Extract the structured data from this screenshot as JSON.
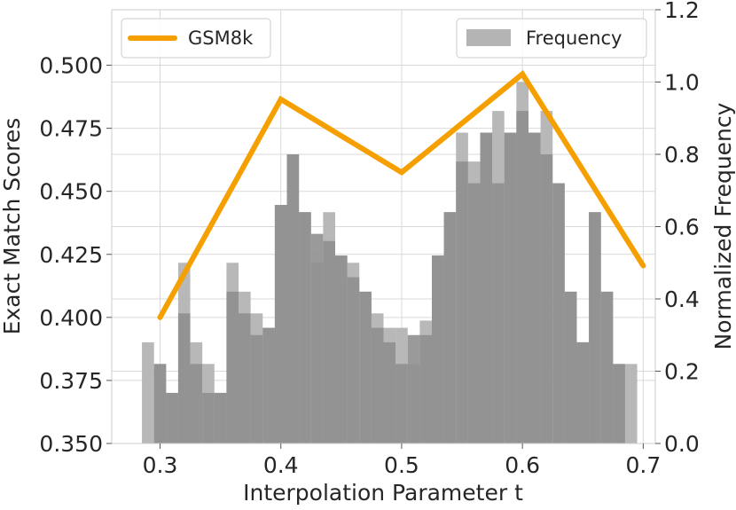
{
  "chart_data": {
    "type": "bar+line",
    "xlabel": "Interpolation Parameter t",
    "ylabel_left": "Exact Match Scores",
    "ylabel_right": "Normalized Frequency",
    "xlim": [
      0.26,
      0.71
    ],
    "ylim_left": [
      0.35,
      0.522
    ],
    "ylim_right": [
      0.0,
      1.2
    ],
    "xticks": [
      "0.3",
      "0.4",
      "0.5",
      "0.6",
      "0.7"
    ],
    "xtick_values": [
      0.3,
      0.4,
      0.5,
      0.6,
      0.7
    ],
    "yticks_left": [
      "0.350",
      "0.375",
      "0.400",
      "0.425",
      "0.450",
      "0.475",
      "0.500"
    ],
    "ytick_values_left": [
      0.35,
      0.375,
      0.4,
      0.425,
      0.45,
      0.475,
      0.5
    ],
    "yticks_right": [
      "0.0",
      "0.2",
      "0.4",
      "0.6",
      "0.8",
      "1.0",
      "1.2"
    ],
    "ytick_values_right": [
      0.0,
      0.2,
      0.4,
      0.6,
      0.8,
      1.0,
      1.2
    ],
    "grid": true,
    "line_series": {
      "name": "GSM8k",
      "color": "#f5a000",
      "x": [
        0.3,
        0.4,
        0.5,
        0.6,
        0.7
      ],
      "y": [
        0.4,
        0.4865,
        0.4575,
        0.4965,
        0.4205
      ]
    },
    "histogram_series": [
      {
        "name": "Frequency",
        "color": "#b4b4b4",
        "bin_width": 0.01,
        "x": [
          0.29,
          0.3,
          0.31,
          0.32,
          0.33,
          0.34,
          0.35,
          0.36,
          0.37,
          0.38,
          0.39,
          0.4,
          0.41,
          0.42,
          0.43,
          0.44,
          0.45,
          0.46,
          0.47,
          0.48,
          0.49,
          0.5,
          0.51,
          0.52,
          0.53,
          0.54,
          0.55,
          0.56,
          0.57,
          0.58,
          0.59,
          0.6,
          0.61,
          0.62,
          0.63,
          0.64,
          0.65,
          0.66,
          0.67,
          0.68,
          0.69
        ],
        "values": [
          0.28,
          0.22,
          0.14,
          0.5,
          0.28,
          0.22,
          0.14,
          0.5,
          0.42,
          0.36,
          0.32,
          0.66,
          0.8,
          0.64,
          0.5,
          0.64,
          0.52,
          0.5,
          0.42,
          0.36,
          0.32,
          0.32,
          0.22,
          0.34,
          0.52,
          0.64,
          0.86,
          0.78,
          0.86,
          0.92,
          0.86,
          1.0,
          0.86,
          0.92,
          0.72,
          0.42,
          0.28,
          0.64,
          0.42,
          0.22,
          0.22
        ]
      },
      {
        "name": "",
        "color": "#8f8f8f",
        "bin_width": 0.01,
        "x": [
          0.3,
          0.31,
          0.32,
          0.33,
          0.34,
          0.35,
          0.36,
          0.37,
          0.38,
          0.39,
          0.4,
          0.41,
          0.42,
          0.43,
          0.44,
          0.45,
          0.46,
          0.47,
          0.48,
          0.49,
          0.5,
          0.51,
          0.52,
          0.53,
          0.54,
          0.55,
          0.56,
          0.57,
          0.58,
          0.59,
          0.6,
          0.61,
          0.62,
          0.63,
          0.64,
          0.65,
          0.66,
          0.67,
          0.68
        ],
        "values": [
          0.22,
          0.14,
          0.36,
          0.22,
          0.14,
          0.14,
          0.42,
          0.36,
          0.3,
          0.32,
          0.66,
          0.8,
          0.64,
          0.58,
          0.56,
          0.52,
          0.46,
          0.42,
          0.32,
          0.28,
          0.22,
          0.3,
          0.3,
          0.52,
          0.64,
          0.78,
          0.72,
          0.86,
          0.72,
          0.86,
          0.92,
          0.86,
          0.8,
          0.72,
          0.42,
          0.28,
          0.64,
          0.42,
          0.22
        ]
      }
    ],
    "legend": {
      "left": {
        "label": "GSM8k",
        "placement": "top-left"
      },
      "right": {
        "label": "Frequency",
        "placement": "top-right"
      }
    }
  }
}
